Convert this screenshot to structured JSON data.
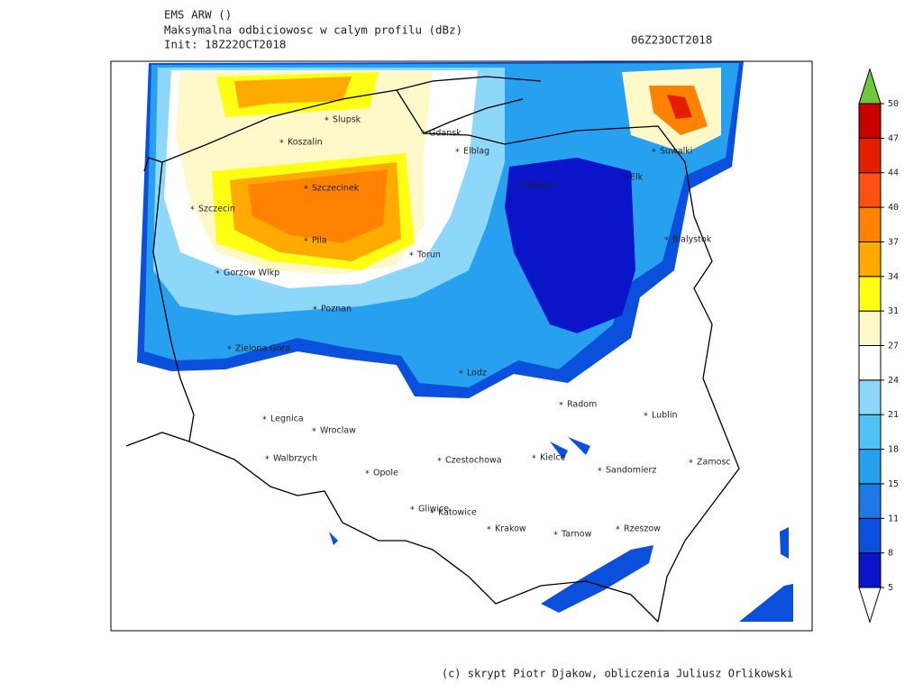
{
  "header": {
    "title": "EMS ARW ()",
    "subtitle": "Maksymalna odbiciowosc w calym profilu (dBz)",
    "init": "Init: 18Z22OCT2018",
    "valid": "06Z23OCT2018"
  },
  "cities": [
    "Slupsk",
    "Koszalin",
    "Gdansk",
    "Elblag",
    "Suwalki",
    "Olsztyn",
    "Elk",
    "Szczecinek",
    "Szczecin",
    "Pila",
    "Torun",
    "Bialystok",
    "Gorzow Wlkp",
    "Poznan",
    "Zielona Gora",
    "Lodz",
    "Radom",
    "Lublin",
    "Legnica",
    "Wroclaw",
    "Walbrzych",
    "Opole",
    "Czestochowa",
    "Kielce",
    "Sandomierz",
    "Zamosc",
    "Gliwice",
    "Katowice",
    "Krakow",
    "Tarnow",
    "Rzeszow"
  ],
  "colorbar": {
    "ticks": [
      5,
      8,
      11,
      15,
      18,
      21,
      24,
      27,
      31,
      34,
      37,
      40,
      44,
      47,
      50
    ],
    "colors": [
      "#0a14c8",
      "#0a50dc",
      "#1e78e6",
      "#28a0f0",
      "#50c3f5",
      "#8cd7fa",
      "#ffffff",
      "#fff8c8",
      "#ffff14",
      "#ffaa00",
      "#ff8200",
      "#ff5014",
      "#e61e00",
      "#c80000"
    ],
    "over": "#6ec83c",
    "under": "#ffffff"
  },
  "credit": "(c) skrypt Piotr Djakow, obliczenia Juliusz Orlikowski"
}
